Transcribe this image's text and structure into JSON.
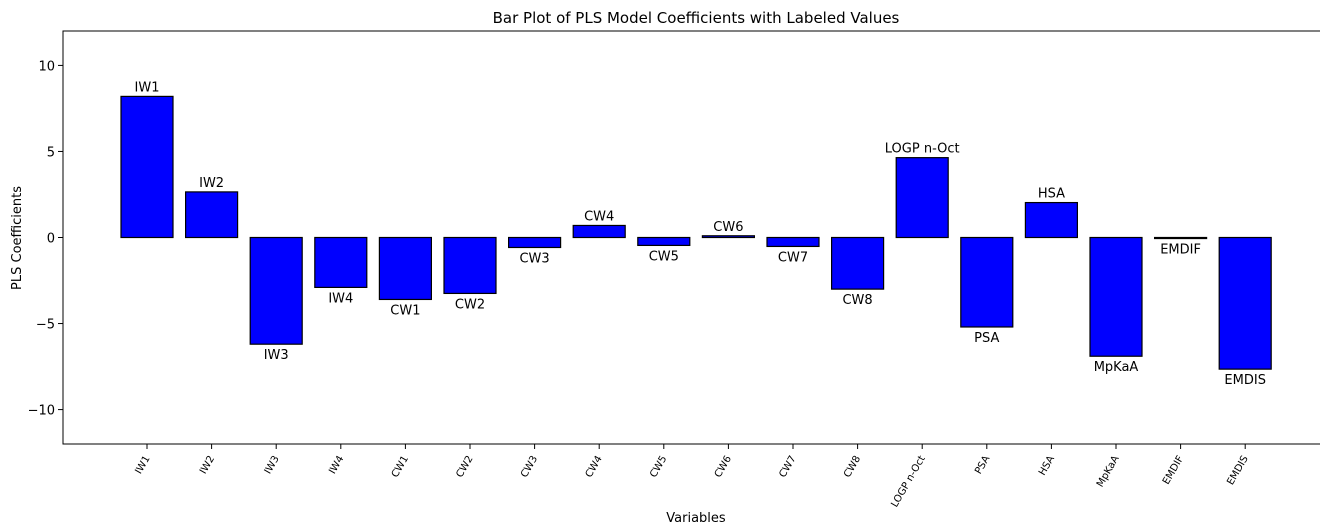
{
  "chart_data": {
    "type": "bar",
    "title": "Bar Plot of PLS Model Coefficients with Labeled Values",
    "x_label": "Variables",
    "y_label": "PLS Coefficients",
    "categories": [
      "IW1",
      "IW2",
      "IW3",
      "IW4",
      "CW1",
      "CW2",
      "CW3",
      "CW4",
      "CW5",
      "CW6",
      "CW7",
      "CW8",
      "LOGP n-Oct",
      "PSA",
      "HSA",
      "MpKaA",
      "EMDIF",
      "EMDIS"
    ],
    "values": [
      8.2,
      2.65,
      -6.2,
      -2.9,
      -3.6,
      -3.25,
      -0.58,
      0.7,
      -0.46,
      0.1,
      -0.52,
      -3.0,
      4.64,
      -5.2,
      2.03,
      -6.9,
      -0.06,
      -7.65
    ],
    "color": "#0000ff",
    "ylim": [
      -12,
      12
    ],
    "yticks": [
      {
        "value": -10,
        "label": "−10"
      },
      {
        "value": -5,
        "label": "−5"
      },
      0,
      5,
      10
    ]
  }
}
